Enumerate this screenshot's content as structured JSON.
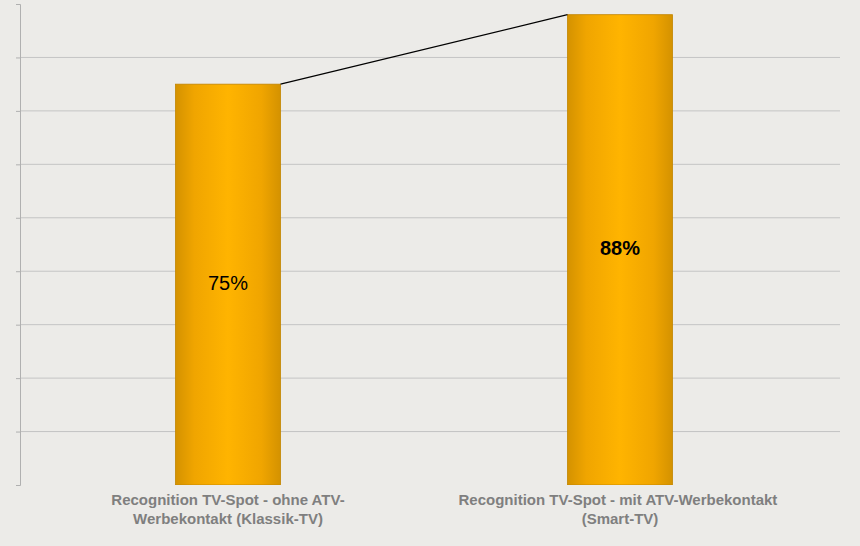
{
  "chart_data": {
    "type": "bar",
    "categories": [
      "Recognition TV-Spot - ohne ATV-Werbekontakt (Klassik-TV)",
      "Recognition TV-Spot - mit ATV-Werbekontakt (Smart-TV)"
    ],
    "values": [
      75,
      88
    ],
    "value_labels": [
      "75%",
      "88%"
    ],
    "color": "#f0a500",
    "ylim": [
      0,
      90
    ],
    "yticks": [
      10,
      20,
      30,
      40,
      50,
      60,
      70,
      80
    ],
    "grid": true,
    "data_labels": true,
    "tick_labels": "x"
  }
}
